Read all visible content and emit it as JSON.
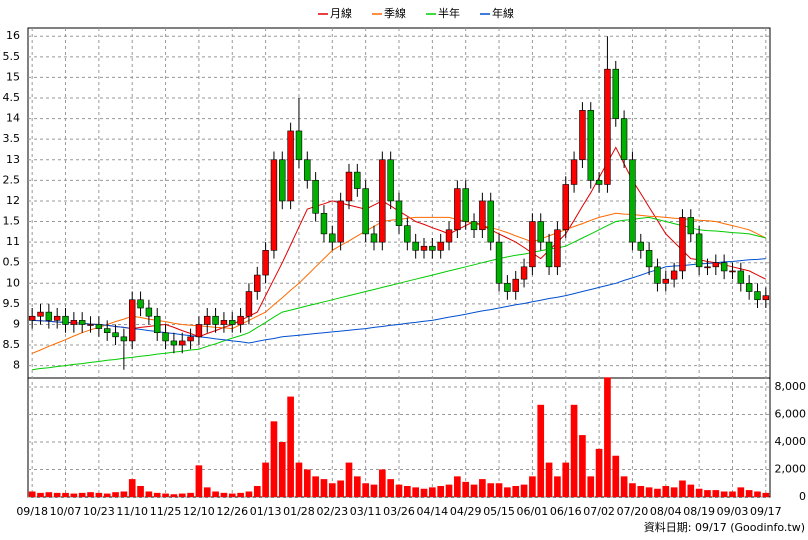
{
  "chart_data": {
    "type": "candlestick",
    "up_color": "#ff0000",
    "down_color": "#00b000",
    "grid": true,
    "categories": [
      "09/18",
      null,
      null,
      null,
      "10/07",
      null,
      null,
      null,
      "10/23",
      null,
      null,
      null,
      "11/10",
      null,
      null,
      null,
      "11/25",
      null,
      null,
      null,
      "12/10",
      null,
      null,
      null,
      "12/26",
      null,
      null,
      null,
      "01/13",
      null,
      null,
      null,
      "01/28",
      null,
      null,
      null,
      "02/23",
      null,
      null,
      null,
      "03/11",
      null,
      null,
      null,
      "03/26",
      null,
      null,
      null,
      "04/14",
      null,
      null,
      null,
      "04/29",
      null,
      null,
      null,
      "05/15",
      null,
      null,
      null,
      "06/01",
      null,
      null,
      null,
      "06/16",
      null,
      null,
      null,
      "07/02",
      null,
      null,
      null,
      "07/20",
      null,
      null,
      null,
      "08/04",
      null,
      null,
      null,
      "08/19",
      null,
      null,
      null,
      "09/03",
      null,
      null,
      null,
      "09/17"
    ],
    "open": [
      9.1,
      9.2,
      9.3,
      9.1,
      9.2,
      9.0,
      9.1,
      9.0,
      9.0,
      8.9,
      8.8,
      8.7,
      8.6,
      9.6,
      9.4,
      9.2,
      8.8,
      8.6,
      8.5,
      8.6,
      8.7,
      9.0,
      9.2,
      9.0,
      9.1,
      9.0,
      9.2,
      9.8,
      10.2,
      10.8,
      13.0,
      12.0,
      13.7,
      13.0,
      12.5,
      11.7,
      11.2,
      11.0,
      12.0,
      12.7,
      12.3,
      11.2,
      11.0,
      13.0,
      12.0,
      11.4,
      11.0,
      10.8,
      10.9,
      10.8,
      11.0,
      11.3,
      12.3,
      11.5,
      11.3,
      12.0,
      11.0,
      10.0,
      9.8,
      10.1,
      10.4,
      11.5,
      11.0,
      10.4,
      11.3,
      12.4,
      13.0,
      14.2,
      12.5,
      12.4,
      15.2,
      14.0,
      13.0,
      11.0,
      10.8,
      10.4,
      10.0,
      10.1,
      10.3,
      11.6,
      11.2,
      10.4,
      10.4,
      10.5,
      10.3,
      10.3,
      10.0,
      9.8,
      9.6
    ],
    "high": [
      9.4,
      9.5,
      9.5,
      9.4,
      9.4,
      9.3,
      9.3,
      9.2,
      9.2,
      9.1,
      9.0,
      8.9,
      9.8,
      9.8,
      9.6,
      9.4,
      9.0,
      8.8,
      8.8,
      8.9,
      9.2,
      9.4,
      9.4,
      9.3,
      9.3,
      9.4,
      10.0,
      10.4,
      11.0,
      13.2,
      13.2,
      13.9,
      14.5,
      13.2,
      12.7,
      11.9,
      11.4,
      12.2,
      12.9,
      12.9,
      12.5,
      11.4,
      13.2,
      13.2,
      12.2,
      11.6,
      11.2,
      11.1,
      11.1,
      11.2,
      11.5,
      12.5,
      12.5,
      11.7,
      12.2,
      12.2,
      11.2,
      10.2,
      10.3,
      10.6,
      11.7,
      11.7,
      11.2,
      11.5,
      12.6,
      13.2,
      14.4,
      14.4,
      12.7,
      16.0,
      15.4,
      14.2,
      13.2,
      11.2,
      11.0,
      10.6,
      10.3,
      10.5,
      11.8,
      11.8,
      11.4,
      10.6,
      10.7,
      10.7,
      10.5,
      10.5,
      10.2,
      10.0,
      9.9
    ],
    "low": [
      8.9,
      9.0,
      8.9,
      8.9,
      8.8,
      8.8,
      8.8,
      8.8,
      8.7,
      8.6,
      8.5,
      7.9,
      8.4,
      9.2,
      9.0,
      8.6,
      8.4,
      8.3,
      8.3,
      8.4,
      8.5,
      8.8,
      8.8,
      8.8,
      8.8,
      8.8,
      9.0,
      9.6,
      10.0,
      10.6,
      11.8,
      11.8,
      12.8,
      12.3,
      11.5,
      11.0,
      10.8,
      10.8,
      11.8,
      12.1,
      11.0,
      10.8,
      10.8,
      11.8,
      11.2,
      10.8,
      10.6,
      10.6,
      10.6,
      10.6,
      10.8,
      11.1,
      11.3,
      11.1,
      11.1,
      10.8,
      9.8,
      9.6,
      9.6,
      9.9,
      10.2,
      10.8,
      10.2,
      10.2,
      11.1,
      12.2,
      12.8,
      12.3,
      12.2,
      12.2,
      13.8,
      12.8,
      10.8,
      10.6,
      10.2,
      9.8,
      9.8,
      9.9,
      10.1,
      11.0,
      10.2,
      10.2,
      10.2,
      10.1,
      10.1,
      9.8,
      9.6,
      9.4,
      9.4
    ],
    "close": [
      9.2,
      9.3,
      9.1,
      9.2,
      9.0,
      9.1,
      9.0,
      9.0,
      8.9,
      8.8,
      8.7,
      8.6,
      9.6,
      9.4,
      9.2,
      8.8,
      8.6,
      8.5,
      8.6,
      8.7,
      9.0,
      9.2,
      9.0,
      9.1,
      9.0,
      9.2,
      9.8,
      10.2,
      10.8,
      13.0,
      12.0,
      13.7,
      13.0,
      12.5,
      11.7,
      11.2,
      11.0,
      12.0,
      12.7,
      12.3,
      11.2,
      11.0,
      13.0,
      12.0,
      11.4,
      11.0,
      10.8,
      10.9,
      10.8,
      11.0,
      11.3,
      12.3,
      11.5,
      11.3,
      12.0,
      11.0,
      10.0,
      9.8,
      10.1,
      10.4,
      11.5,
      11.0,
      10.4,
      11.3,
      12.4,
      13.0,
      14.2,
      12.5,
      12.4,
      15.2,
      14.0,
      13.0,
      11.0,
      10.8,
      10.4,
      10.0,
      10.1,
      10.3,
      11.6,
      11.2,
      10.4,
      10.4,
      10.5,
      10.3,
      10.3,
      10.0,
      9.8,
      9.6,
      9.7
    ],
    "series": [
      {
        "name": "月線",
        "color": "#e00000",
        "values": [
          9.1,
          9.09,
          9.08,
          9.06,
          9.05,
          9.04,
          9.03,
          9.01,
          9.0,
          8.98,
          8.95,
          8.93,
          8.9,
          8.93,
          8.95,
          8.98,
          9.0,
          8.93,
          8.85,
          8.78,
          8.7,
          8.78,
          8.85,
          8.93,
          9.0,
          9.1,
          9.2,
          9.3,
          9.7,
          10.1,
          10.5,
          10.93,
          11.37,
          11.8,
          11.87,
          11.93,
          12.0,
          11.95,
          11.9,
          11.85,
          11.8,
          11.9,
          12.0,
          11.88,
          11.75,
          11.63,
          11.5,
          11.43,
          11.35,
          11.28,
          11.2,
          11.3,
          11.4,
          11.5,
          11.4,
          11.3,
          11.2,
          11.1,
          11.0,
          10.87,
          10.73,
          10.6,
          10.8,
          11.0,
          11.2,
          11.53,
          11.87,
          12.2,
          12.57,
          12.93,
          13.3,
          12.9,
          12.5,
          12.18,
          11.85,
          11.53,
          11.2,
          11.0,
          10.8,
          10.6,
          10.57,
          10.53,
          10.5,
          10.45,
          10.4,
          10.35,
          10.3,
          10.2,
          10.1
        ]
      },
      {
        "name": "季線",
        "color": "#ff6a00",
        "values": [
          8.3,
          8.38,
          8.47,
          8.55,
          8.63,
          8.72,
          8.8,
          8.87,
          8.93,
          9.0,
          9.07,
          9.13,
          9.2,
          9.17,
          9.13,
          9.1,
          9.07,
          9.03,
          9.0,
          8.98,
          8.97,
          8.95,
          8.93,
          8.92,
          8.9,
          9.0,
          9.1,
          9.2,
          9.3,
          9.48,
          9.65,
          9.83,
          10.0,
          10.2,
          10.4,
          10.6,
          10.8,
          10.92,
          11.03,
          11.15,
          11.27,
          11.38,
          11.5,
          11.53,
          11.55,
          11.58,
          11.6,
          11.6,
          11.6,
          11.6,
          11.6,
          11.55,
          11.5,
          11.45,
          11.4,
          11.35,
          11.3,
          11.23,
          11.15,
          11.08,
          11.0,
          11.08,
          11.15,
          11.23,
          11.3,
          11.38,
          11.45,
          11.53,
          11.6,
          11.65,
          11.7,
          11.68,
          11.67,
          11.65,
          11.63,
          11.62,
          11.6,
          11.58,
          11.57,
          11.55,
          11.53,
          11.52,
          11.5,
          11.45,
          11.4,
          11.35,
          11.3,
          11.2,
          11.1
        ]
      },
      {
        "name": "半年",
        "color": "#00cc00",
        "values": [
          7.9,
          7.93,
          7.95,
          7.98,
          8.0,
          8.03,
          8.05,
          8.08,
          8.1,
          8.13,
          8.15,
          8.18,
          8.2,
          8.23,
          8.25,
          8.28,
          8.3,
          8.33,
          8.35,
          8.38,
          8.4,
          8.47,
          8.53,
          8.6,
          8.67,
          8.73,
          8.8,
          8.93,
          9.05,
          9.18,
          9.3,
          9.35,
          9.4,
          9.45,
          9.5,
          9.55,
          9.6,
          9.65,
          9.7,
          9.75,
          9.8,
          9.85,
          9.9,
          9.95,
          10.0,
          10.05,
          10.1,
          10.15,
          10.2,
          10.25,
          10.3,
          10.35,
          10.4,
          10.45,
          10.5,
          10.55,
          10.6,
          10.64,
          10.68,
          10.71,
          10.75,
          10.79,
          10.83,
          10.86,
          10.9,
          11.0,
          11.1,
          11.2,
          11.3,
          11.4,
          11.5,
          11.53,
          11.55,
          11.58,
          11.6,
          11.55,
          11.5,
          11.45,
          11.4,
          11.35,
          11.3,
          11.28,
          11.27,
          11.25,
          11.23,
          11.22,
          11.2,
          11.15,
          11.1
        ]
      },
      {
        "name": "年線",
        "color": "#0050d0",
        "values": [
          9.1,
          9.09,
          9.08,
          9.06,
          9.05,
          9.04,
          9.03,
          9.01,
          9.0,
          8.98,
          8.95,
          8.93,
          8.9,
          8.88,
          8.85,
          8.83,
          8.8,
          8.78,
          8.75,
          8.73,
          8.7,
          8.68,
          8.65,
          8.63,
          8.6,
          8.58,
          8.55,
          8.59,
          8.63,
          8.66,
          8.7,
          8.72,
          8.74,
          8.76,
          8.78,
          8.8,
          8.82,
          8.84,
          8.86,
          8.88,
          8.9,
          8.93,
          8.95,
          8.98,
          9.0,
          9.03,
          9.05,
          9.08,
          9.1,
          9.14,
          9.18,
          9.21,
          9.25,
          9.29,
          9.33,
          9.36,
          9.4,
          9.44,
          9.48,
          9.51,
          9.55,
          9.59,
          9.63,
          9.66,
          9.7,
          9.75,
          9.8,
          9.85,
          9.9,
          9.95,
          10.0,
          10.07,
          10.13,
          10.2,
          10.27,
          10.33,
          10.4,
          10.42,
          10.43,
          10.45,
          10.47,
          10.48,
          10.5,
          10.52,
          10.53,
          10.55,
          10.57,
          10.58,
          10.6
        ]
      }
    ],
    "ylim": [
      7.7,
      16.2
    ],
    "yticks": [
      8,
      8.5,
      9,
      9.5,
      10,
      {
        "value": 10.5,
        "label": "0.5"
      },
      11,
      {
        "value": 11.5,
        "label": "1.5"
      },
      12,
      {
        "value": 12.5,
        "label": "2.5"
      },
      13,
      {
        "value": 13.5,
        "label": "3.5"
      },
      14,
      {
        "value": 14.5,
        "label": "4.5"
      },
      15,
      {
        "value": 15.5,
        "label": "5.5"
      },
      16
    ],
    "volume": {
      "color": "#ff0000",
      "values": [
        400,
        300,
        350,
        300,
        300,
        250,
        300,
        350,
        300,
        250,
        350,
        400,
        1300,
        800,
        400,
        300,
        250,
        200,
        250,
        300,
        2300,
        700,
        400,
        300,
        250,
        300,
        400,
        800,
        2500,
        5500,
        4000,
        7300,
        2500,
        2000,
        1500,
        1300,
        1000,
        1200,
        2500,
        1500,
        1000,
        900,
        2000,
        1300,
        900,
        800,
        700,
        600,
        700,
        800,
        900,
        1500,
        1100,
        900,
        1300,
        1000,
        1000,
        700,
        800,
        900,
        1500,
        6700,
        2500,
        1500,
        2500,
        6700,
        4500,
        1500,
        3500,
        8700,
        3000,
        1500,
        1000,
        800,
        700,
        600,
        800,
        700,
        1200,
        900,
        600,
        500,
        500,
        400,
        400,
        700,
        500,
        400,
        300
      ],
      "y2lim": [
        0,
        8650
      ],
      "y2ticks": [
        0,
        {
          "value": 2000,
          "label": "2,000"
        },
        {
          "value": 4000,
          "label": "4,000"
        },
        {
          "value": 6000,
          "label": "6,000"
        },
        {
          "value": 8000,
          "label": "8,000"
        }
      ]
    },
    "note": "資料日期: 09/17  (Goodinfo.tw)"
  }
}
